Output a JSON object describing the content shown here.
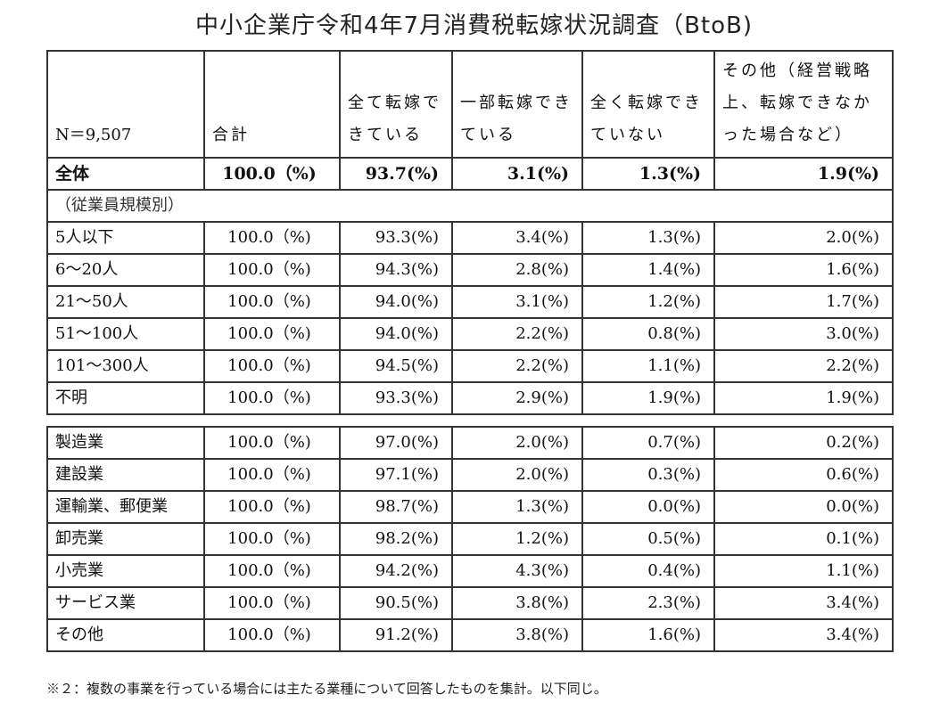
{
  "title": "中小企業庁令和4年7月消費税転嫁状況調査（BtoB)",
  "header": {
    "n": "N＝9,507",
    "cols": [
      "合計",
      "全て転嫁できている",
      "一部転嫁できている",
      "全く転嫁できていない",
      "その他（経営戦略上、転嫁できなかった場合など）"
    ]
  },
  "total_row": {
    "label": "全体",
    "values": [
      "100.0（%)",
      "93.7(%)",
      "3.1(%)",
      "1.3(%)",
      "1.9(%)"
    ]
  },
  "size_section_label": "（従業員規模別）",
  "size_rows": [
    {
      "label": "5人以下",
      "values": [
        "100.0（%)",
        "93.3(%)",
        "3.4(%)",
        "1.3(%)",
        "2.0(%)"
      ]
    },
    {
      "label": "6～20人",
      "values": [
        "100.0（%)",
        "94.3(%)",
        "2.8(%)",
        "1.4(%)",
        "1.6(%)"
      ]
    },
    {
      "label": "21～50人",
      "values": [
        "100.0（%)",
        "94.0(%)",
        "3.1(%)",
        "1.2(%)",
        "1.7(%)"
      ]
    },
    {
      "label": "51～100人",
      "values": [
        "100.0（%)",
        "94.0(%)",
        "2.2(%)",
        "0.8(%)",
        "3.0(%)"
      ]
    },
    {
      "label": "101～300人",
      "values": [
        "100.0（%)",
        "94.5(%)",
        "2.2(%)",
        "1.1(%)",
        "2.2(%)"
      ]
    },
    {
      "label": "不明",
      "values": [
        "100.0（%)",
        "93.3(%)",
        "2.9(%)",
        "1.9(%)",
        "1.9(%)"
      ]
    }
  ],
  "industry_rows": [
    {
      "label": "製造業",
      "values": [
        "100.0（%)",
        "97.0(%)",
        "2.0(%)",
        "0.7(%)",
        "0.2(%)"
      ]
    },
    {
      "label": "建設業",
      "values": [
        "100.0（%)",
        "97.1(%)",
        "2.0(%)",
        "0.3(%)",
        "0.6(%)"
      ]
    },
    {
      "label": "運輸業、郵便業",
      "values": [
        "100.0（%)",
        "98.7(%)",
        "1.3(%)",
        "0.0(%)",
        "0.0(%)"
      ]
    },
    {
      "label": "卸売業",
      "values": [
        "100.0（%)",
        "98.2(%)",
        "1.2(%)",
        "0.5(%)",
        "0.1(%)"
      ]
    },
    {
      "label": "小売業",
      "values": [
        "100.0（%)",
        "94.2(%)",
        "4.3(%)",
        "0.4(%)",
        "1.1(%)"
      ]
    },
    {
      "label": "サービス業",
      "values": [
        "100.0（%)",
        "90.5(%)",
        "3.8(%)",
        "2.3(%)",
        "3.4(%)"
      ]
    },
    {
      "label": "その他",
      "values": [
        "100.0（%)",
        "91.2(%)",
        "3.8(%)",
        "1.6(%)",
        "3.4(%)"
      ]
    }
  ],
  "footnote": "※２：複数の事業を行っている場合には主たる業種について回答したものを集計。以下同じ。"
}
